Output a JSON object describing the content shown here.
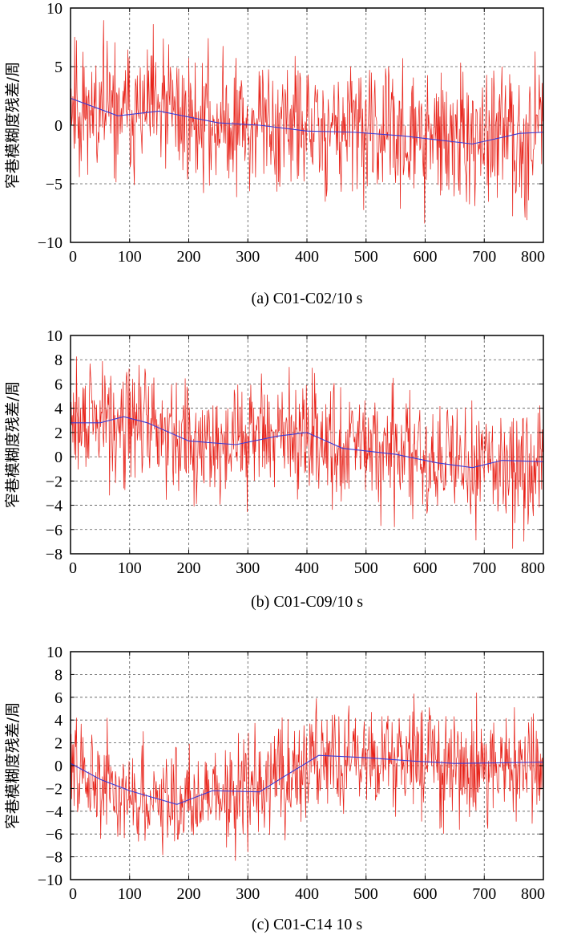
{
  "chart_data": [
    {
      "type": "line",
      "title": "(a) C01-C02/10 s",
      "ylabel": "窄巷模糊度残差/周",
      "xlabel": "",
      "xlim": [
        0,
        800
      ],
      "ylim": [
        -10,
        10
      ],
      "xticks": [
        0,
        100,
        200,
        300,
        400,
        500,
        600,
        700,
        800
      ],
      "yticks": [
        -10,
        -5,
        0,
        5,
        10
      ],
      "xtick_labels": [
        "0",
        "100",
        "200",
        "300",
        "400",
        "500",
        "600",
        "700",
        "800"
      ],
      "ytick_labels": [
        "−10",
        "−5",
        "0",
        "5",
        "10"
      ],
      "grid": true,
      "series": [
        {
          "name": "residual",
          "color": "#e8231a",
          "n": 800,
          "amplitude": 3.1,
          "seed": 11,
          "trend_x": [
            0,
            80,
            150,
            250,
            320,
            400,
            480,
            560,
            680,
            760,
            800
          ],
          "trend_y": [
            2.3,
            0.8,
            1.2,
            0.2,
            0.0,
            -0.5,
            -0.6,
            -0.9,
            -1.6,
            -0.7,
            -0.6
          ]
        },
        {
          "name": "trend",
          "color": "#3b3bd6",
          "x": [
            0,
            80,
            150,
            250,
            320,
            400,
            480,
            560,
            680,
            760,
            800
          ],
          "y": [
            2.3,
            0.8,
            1.2,
            0.2,
            0.0,
            -0.5,
            -0.6,
            -0.9,
            -1.6,
            -0.7,
            -0.6
          ]
        }
      ]
    },
    {
      "type": "line",
      "title": "(b) C01-C09/10 s",
      "ylabel": "窄巷模糊度残差/周",
      "xlabel": "",
      "xlim": [
        0,
        800
      ],
      "ylim": [
        -8,
        10
      ],
      "xticks": [
        0,
        100,
        200,
        300,
        400,
        500,
        600,
        700,
        800
      ],
      "yticks": [
        -8,
        -6,
        -4,
        -2,
        0,
        2,
        4,
        6,
        8,
        10
      ],
      "xtick_labels": [
        "0",
        "100",
        "200",
        "300",
        "400",
        "500",
        "600",
        "700",
        "800"
      ],
      "ytick_labels": [
        "−8",
        "−6",
        "−4",
        "−2",
        "0",
        "2",
        "4",
        "6",
        "8",
        "10"
      ],
      "grid": true,
      "series": [
        {
          "name": "residual",
          "color": "#e8231a",
          "n": 800,
          "amplitude": 2.6,
          "seed": 29,
          "trend_x": [
            0,
            50,
            90,
            130,
            200,
            280,
            350,
            400,
            460,
            550,
            620,
            680,
            730,
            800
          ],
          "trend_y": [
            2.8,
            2.8,
            3.3,
            2.8,
            1.3,
            1.0,
            1.7,
            2.0,
            0.7,
            0.2,
            -0.5,
            -0.9,
            -0.3,
            -0.4
          ]
        },
        {
          "name": "trend",
          "color": "#3b3bd6",
          "x": [
            0,
            50,
            90,
            130,
            200,
            280,
            350,
            400,
            460,
            550,
            620,
            680,
            730,
            800
          ],
          "y": [
            2.8,
            2.8,
            3.3,
            2.8,
            1.3,
            1.0,
            1.7,
            2.0,
            0.7,
            0.2,
            -0.5,
            -0.9,
            -0.3,
            -0.4
          ]
        }
      ]
    },
    {
      "type": "line",
      "title": "(c) C01-C14 10 s",
      "ylabel": "窄巷模糊度残差/周",
      "xlabel": "",
      "xlim": [
        0,
        800
      ],
      "ylim": [
        -10,
        10
      ],
      "xticks": [
        0,
        100,
        200,
        300,
        400,
        500,
        600,
        700,
        800
      ],
      "yticks": [
        -10,
        -8,
        -6,
        -4,
        -2,
        0,
        2,
        4,
        6,
        8,
        10
      ],
      "xtick_labels": [
        "0",
        "100",
        "200",
        "300",
        "400",
        "500",
        "600",
        "700",
        "800"
      ],
      "ytick_labels": [
        "−10",
        "−8",
        "−6",
        "−4",
        "−2",
        "0",
        "2",
        "4",
        "6",
        "8",
        "10"
      ],
      "grid": true,
      "series": [
        {
          "name": "residual",
          "color": "#e8231a",
          "n": 800,
          "amplitude": 2.5,
          "seed": 47,
          "trend_x": [
            0,
            50,
            100,
            180,
            240,
            320,
            360,
            420,
            500,
            580,
            650,
            800
          ],
          "trend_y": [
            0.2,
            -1.2,
            -2.2,
            -3.4,
            -2.2,
            -2.3,
            -1.0,
            0.9,
            0.7,
            0.4,
            0.2,
            0.3
          ]
        },
        {
          "name": "trend",
          "color": "#3b3bd6",
          "x": [
            0,
            50,
            100,
            180,
            240,
            320,
            360,
            420,
            500,
            580,
            650,
            800
          ],
          "y": [
            0.2,
            -1.2,
            -2.2,
            -3.4,
            -2.2,
            -2.3,
            -1.0,
            0.9,
            0.7,
            0.4,
            0.2,
            0.3
          ]
        }
      ]
    }
  ]
}
